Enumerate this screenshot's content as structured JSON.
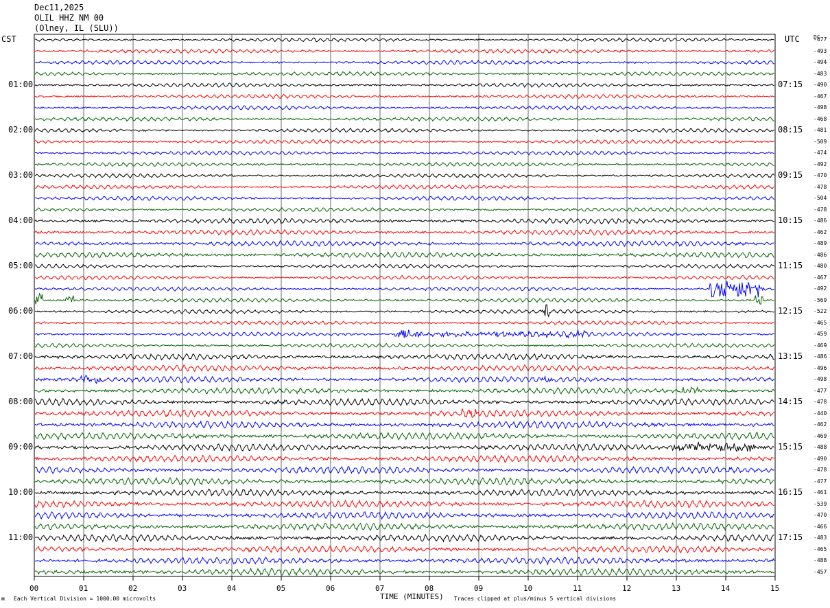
{
  "header": {
    "date": "Dec11,2025",
    "station": "OLIL HHZ NM 00",
    "location": "(Olney, IL (SLU))"
  },
  "left_tz": "CST",
  "right_tz": "UTC",
  "dc_label": "DC",
  "footer": {
    "vertical_division": "Each Vertical Division = 1000.00 microvolts",
    "clip_note": "Traces clipped at plus/minus 5 vertical divisions",
    "mark": "ᴍ"
  },
  "chart_data": {
    "type": "line",
    "xlabel": "TIME (MINUTES)",
    "x_ticks": [
      "00",
      "01",
      "02",
      "03",
      "04",
      "05",
      "06",
      "07",
      "08",
      "09",
      "10",
      "11",
      "12",
      "13",
      "14",
      "15"
    ],
    "xlim": [
      0,
      15
    ],
    "trace_colors": [
      "#000000",
      "#ff0000",
      "#0000ff",
      "#006400"
    ],
    "trace_count": 48,
    "left_hour_labels": [
      "01:00",
      "02:00",
      "03:00",
      "04:00",
      "05:00",
      "06:00",
      "07:00",
      "08:00",
      "09:00",
      "10:00",
      "11:00"
    ],
    "right_hour_labels": [
      "07:15",
      "08:15",
      "09:15",
      "10:15",
      "11:15",
      "12:15",
      "13:15",
      "14:15",
      "15:15",
      "16:15",
      "17:15"
    ],
    "dc_offsets": [
      "-477",
      "-493",
      "-494",
      "-483",
      "-490",
      "-467",
      "-498",
      "-468",
      "-481",
      "-509",
      "-474",
      "-492",
      "-470",
      "-478",
      "-504",
      "-478",
      "-486",
      "-462",
      "-489",
      "-486",
      "-480",
      "-467",
      "-492",
      "-569",
      "-522",
      "-465",
      "-459",
      "-469",
      "-486",
      "-496",
      "-498",
      "-477",
      "-478",
      "-440",
      "-462",
      "-469",
      "-488",
      "-490",
      "-478",
      "-477",
      "-461",
      "-539",
      "-470",
      "-466",
      "-483",
      "-465",
      "-488",
      "-457"
    ]
  }
}
